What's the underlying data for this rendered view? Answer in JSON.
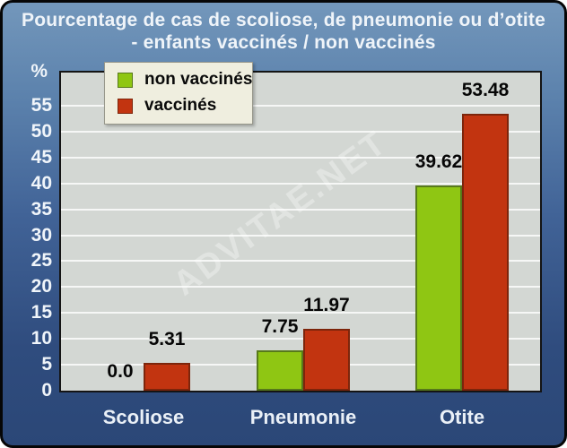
{
  "title": {
    "line1": "Pourcentage de cas de scoliose, de pneumonie ou d’otite",
    "line2": "- enfants vaccinés / non vaccinés"
  },
  "watermark": "ADVITAE.NET",
  "chart_data": {
    "type": "bar",
    "title": "Pourcentage de cas de scoliose, de pneumonie ou d’otite - enfants vaccinés / non vaccinés",
    "categories": [
      "Scoliose",
      "Pneumonie",
      "Otite"
    ],
    "series": [
      {
        "name": "non vaccinés",
        "color": "#8FC613",
        "border_color": "#57791B",
        "values": [
          0.0,
          7.75,
          39.62
        ],
        "labels": [
          "0.0",
          "7.75",
          "39.62"
        ]
      },
      {
        "name": "vaccinés",
        "color": "#C23410",
        "border_color": "#7D250B",
        "values": [
          5.31,
          11.97,
          53.48
        ],
        "labels": [
          "5.31",
          "11.97",
          "53.48"
        ]
      }
    ],
    "ylabel": "%",
    "yticks": [
      0,
      5,
      10,
      15,
      20,
      25,
      30,
      35,
      40,
      45,
      50,
      55
    ],
    "ylim": [
      0,
      61.4
    ],
    "grid": true,
    "gridline_color": "#FFFFFF",
    "plot_bg": "#D3D7D3",
    "legend_position": "top-left",
    "background_gradient": [
      "#7397BB",
      "#2B4777"
    ]
  }
}
